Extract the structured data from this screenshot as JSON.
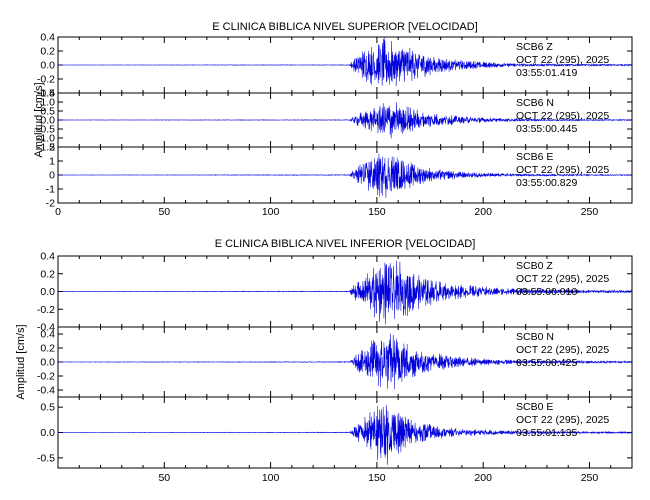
{
  "chart_data": [
    {
      "type": "line",
      "title": "E CLINICA BIBLICA NIVEL SUPERIOR [VELOCIDAD]",
      "ylabel": "Amplitud [cm/s]",
      "xlim": [
        0,
        270
      ],
      "x_ticks": [
        0,
        50,
        100,
        150,
        200,
        250
      ],
      "grid": false,
      "traces": [
        {
          "station": "SCB6",
          "component": "Z",
          "date": "OCT 22 (295), 2025",
          "time": "03:55:01.419",
          "ylim": [
            -0.4,
            0.4
          ],
          "y_ticks": [
            "0.4",
            "0.2",
            "0.0",
            "-0.2",
            "-0.4"
          ],
          "y_tick_values": [
            0.4,
            0.2,
            0.0,
            -0.2,
            -0.4
          ],
          "envelope": {
            "x": [
              0,
              137,
              140,
              145,
              150,
              155,
              160,
              165,
              170,
              180,
              190,
              200,
              210,
              230,
              250,
              270
            ],
            "amp": [
              0.002,
              0.005,
              0.15,
              0.25,
              0.38,
              0.4,
              0.32,
              0.28,
              0.2,
              0.12,
              0.08,
              0.05,
              0.03,
              0.02,
              0.015,
              0.01
            ]
          }
        },
        {
          "station": "SCB6",
          "component": "N",
          "date": "OCT 22 (295), 2025",
          "time": "03:55:00.445",
          "ylim": [
            -1.5,
            1.5
          ],
          "y_ticks": [
            "1.5",
            "1.0",
            "0.5",
            "0.0",
            "-0.5",
            "-1.0",
            "-1.5"
          ],
          "y_tick_values": [
            1.5,
            1.0,
            0.5,
            0.0,
            -0.5,
            -1.0,
            -1.5
          ],
          "envelope": {
            "x": [
              0,
              137,
              140,
              145,
              150,
              155,
              160,
              165,
              170,
              180,
              190,
              200,
              210,
              230,
              250,
              270
            ],
            "amp": [
              0.01,
              0.02,
              0.3,
              0.6,
              1.0,
              1.2,
              1.0,
              0.8,
              0.55,
              0.35,
              0.22,
              0.15,
              0.1,
              0.06,
              0.04,
              0.03
            ]
          }
        },
        {
          "station": "SCB6",
          "component": "E",
          "date": "OCT 22 (295), 2025",
          "time": "03:55:00.829",
          "ylim": [
            -2,
            2
          ],
          "y_ticks": [
            "2",
            "1",
            "0",
            "-1",
            "-2"
          ],
          "y_tick_values": [
            2,
            1,
            0,
            -1,
            -2
          ],
          "envelope": {
            "x": [
              0,
              137,
              140,
              145,
              150,
              155,
              160,
              165,
              170,
              180,
              190,
              200,
              210,
              230,
              250,
              270
            ],
            "amp": [
              0.01,
              0.03,
              0.6,
              1.2,
              1.6,
              1.8,
              1.3,
              1.0,
              0.7,
              0.4,
              0.25,
              0.18,
              0.12,
              0.08,
              0.05,
              0.04
            ]
          }
        }
      ]
    },
    {
      "type": "line",
      "title": "E CLINICA BIBLICA NIVEL INFERIOR [VELOCIDAD]",
      "ylabel": "Amplitud [cm/s]",
      "xlim": [
        0,
        270
      ],
      "x_ticks": [
        50,
        100,
        150,
        200,
        250
      ],
      "grid": false,
      "traces": [
        {
          "station": "SCB0",
          "component": "Z",
          "date": "OCT 22 (295), 2025",
          "time": "03:55:00.010",
          "ylim": [
            -0.4,
            0.4
          ],
          "y_ticks": [
            "0.4",
            "0.2",
            "0.0",
            "-0.2",
            "-0.4"
          ],
          "y_tick_values": [
            0.4,
            0.2,
            0.0,
            -0.2,
            -0.4
          ],
          "envelope": {
            "x": [
              0,
              137,
              140,
              145,
              150,
              155,
              160,
              165,
              170,
              180,
              190,
              200,
              210,
              230,
              250,
              270
            ],
            "amp": [
              0.002,
              0.005,
              0.12,
              0.22,
              0.35,
              0.4,
              0.38,
              0.3,
              0.2,
              0.12,
              0.08,
              0.06,
              0.04,
              0.03,
              0.02,
              0.015
            ]
          }
        },
        {
          "station": "SCB0",
          "component": "N",
          "date": "OCT 22 (295), 2025",
          "time": "03:55:00.425",
          "ylim": [
            -0.5,
            0.5
          ],
          "y_ticks": [
            "0.4",
            "0.2",
            "0.0",
            "-0.2",
            "-0.4"
          ],
          "y_tick_values": [
            0.4,
            0.2,
            0.0,
            -0.2,
            -0.4
          ],
          "envelope": {
            "x": [
              0,
              137,
              140,
              145,
              150,
              155,
              160,
              165,
              170,
              180,
              190,
              200,
              210,
              230,
              250,
              270
            ],
            "amp": [
              0.003,
              0.006,
              0.1,
              0.25,
              0.4,
              0.45,
              0.38,
              0.28,
              0.2,
              0.12,
              0.08,
              0.05,
              0.035,
              0.025,
              0.02,
              0.015
            ]
          }
        },
        {
          "station": "SCB0",
          "component": "E",
          "date": "OCT 22 (295), 2025",
          "time": "03:55:01.135",
          "ylim": [
            -0.7,
            0.7
          ],
          "y_ticks": [
            "0.5",
            "0.0",
            "-0.5"
          ],
          "y_tick_values": [
            0.5,
            0.0,
            -0.5
          ],
          "envelope": {
            "x": [
              0,
              137,
              140,
              145,
              150,
              155,
              160,
              165,
              170,
              180,
              190,
              200,
              210,
              230,
              250,
              270
            ],
            "amp": [
              0.003,
              0.008,
              0.15,
              0.35,
              0.6,
              0.65,
              0.5,
              0.35,
              0.22,
              0.12,
              0.08,
              0.06,
              0.04,
              0.03,
              0.02,
              0.015
            ]
          }
        }
      ]
    }
  ]
}
